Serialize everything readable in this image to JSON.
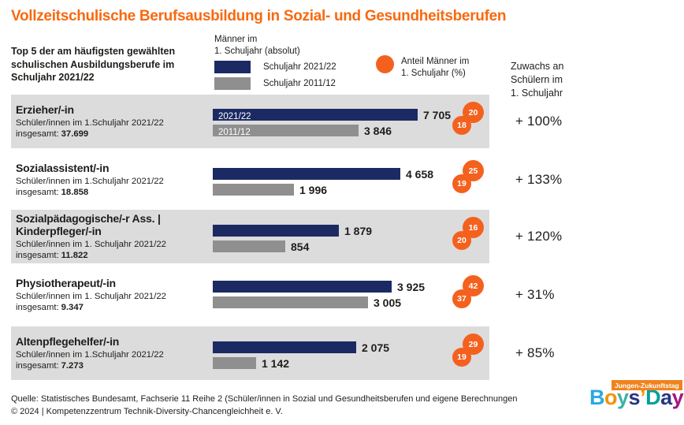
{
  "title": "Vollzeitschulische Berufsausbildung in Sozial- und Gesundheitsberufen",
  "colors": {
    "accent_orange": "#f8690e",
    "circle_orange": "#f4611e",
    "bar_navy": "#1b2a63",
    "bar_gray": "#8f8f8f",
    "row_band_gray": "#dcdcdc"
  },
  "header": {
    "intro": "Top 5 der am häufigsten gewählten schulischen Ausbildungsberufe im Schuljahr 2021/22",
    "legend_abs_line1": "Männer im",
    "legend_abs_line2": "1. Schuljahr (absolut)",
    "legend_blue_label": "Schuljahr 2021/22",
    "legend_gray_label": "Schuljahr 2011/12",
    "legend_pct_line1": "Anteil Männer im",
    "legend_pct_line2": "1. Schuljahr (%)",
    "right_col_line1": "Zuwachs an",
    "right_col_line2": "Schülern im",
    "right_col_line3": "1. Schuljahr"
  },
  "rows": [
    {
      "title": "Erzieher/-in",
      "sub": "Schüler/innen im 1.Schuljahr 2021/22",
      "total_label": "insgesamt:",
      "total": "37.699",
      "bar1": {
        "inline": "2021/22",
        "label": "7 705",
        "px": 260
      },
      "bar2": {
        "inline": "2011/12",
        "label": "3 846",
        "px": 185
      },
      "pct_top": "20",
      "pct_bottom": "18",
      "growth": "+ 100%"
    },
    {
      "title": "Sozialassistent/-in",
      "sub": "Schüler/innen im 1.Schuljahr 2021/22",
      "total_label": "insgesamt:",
      "total": "18.858",
      "bar1": {
        "inline": "",
        "label": "4 658",
        "px": 238
      },
      "bar2": {
        "inline": "",
        "label": "1 996",
        "px": 103
      },
      "pct_top": "25",
      "pct_bottom": "19",
      "growth": "+ 133%"
    },
    {
      "title": "Sozialpädagogische/-r Ass. | Kinderpfleger/-in",
      "sub": "Schüler/innen im 1. Schuljahr 2021/22",
      "total_label": "insgesamt:",
      "total": "11.822",
      "bar1": {
        "inline": "",
        "label": "1 879",
        "px": 160
      },
      "bar2": {
        "inline": "",
        "label": "854",
        "px": 92
      },
      "pct_top": "16",
      "pct_bottom": "20",
      "growth": "+ 120%"
    },
    {
      "title": "Physiotherapeut/-in",
      "sub": "Schüler/innen im 1. Schuljahr 2021/22",
      "total_label": "insgesamt:",
      "total": "9.347",
      "bar1": {
        "inline": "",
        "label": "3 925",
        "px": 227
      },
      "bar2": {
        "inline": "",
        "label": "3 005",
        "px": 197
      },
      "pct_top": "42",
      "pct_bottom": "37",
      "growth": "+ 31%"
    },
    {
      "title": "Altenpflegehelfer/-in",
      "sub": "Schüler/innen im 1.Schuljahr 2021/22",
      "total_label": "insgesamt:",
      "total": "7.273",
      "bar1": {
        "inline": "",
        "label": "2 075",
        "px": 182
      },
      "bar2": {
        "inline": "",
        "label": "1 142",
        "px": 55
      },
      "pct_top": "29",
      "pct_bottom": "19",
      "growth": "+ 85%"
    }
  ],
  "footer": {
    "line1": "Quelle: Statistisches Bundesamt, Fachserie 11 Reihe 2 (Schüler/innen in Sozial und Gesundheitsberufen und eigene Berechnungen",
    "line2": "© 2024 | Kompetenzzentrum Technik-Diversity-Chancengleichheit e. V."
  },
  "logo": {
    "badge": "Jungen-Zukunftstag",
    "letters": [
      {
        "ch": "B",
        "color": "#2ba8e0"
      },
      {
        "ch": "o",
        "color": "#f39200"
      },
      {
        "ch": "y",
        "color": "#3cb3a6"
      },
      {
        "ch": "s",
        "color": "#283583"
      },
      {
        "ch": "’",
        "color": "#f39200"
      },
      {
        "ch": "D",
        "color": "#00a19a"
      },
      {
        "ch": "a",
        "color": "#283583"
      },
      {
        "ch": "y",
        "color": "#a3197f"
      }
    ]
  },
  "chart_data": {
    "type": "bar",
    "orientation": "horizontal",
    "title": "Vollzeitschulische Berufsausbildung in Sozial- und Gesundheitsberufen",
    "subtitle": "Top 5 der am häufigsten gewählten schulischen Ausbildungsberufe im Schuljahr 2021/22",
    "categories": [
      "Erzieher/-in",
      "Sozialassistent/-in",
      "Sozialpädagogische/-r Ass. | Kinderpfleger/-in",
      "Physiotherapeut/-in",
      "Altenpflegehelfer/-in"
    ],
    "series": [
      {
        "name": "Schuljahr 2021/22",
        "values": [
          7705,
          4658,
          1879,
          3925,
          2075
        ],
        "color": "#1b2a63"
      },
      {
        "name": "Schuljahr 2011/12",
        "values": [
          3846,
          1996,
          854,
          3005,
          1142
        ],
        "color": "#8f8f8f"
      }
    ],
    "male_share_pct": [
      {
        "name": "Anteil Männer im 1. Schuljahr (%) 2021/22",
        "values": [
          20,
          25,
          16,
          42,
          29
        ]
      },
      {
        "name": "Anteil Männer im 1. Schuljahr (%) 2011/12",
        "values": [
          18,
          19,
          20,
          37,
          19
        ]
      }
    ],
    "totals_first_year_2021_22": [
      37699,
      18858,
      11822,
      9347,
      7273
    ],
    "growth_first_year_pct": [
      100,
      133,
      120,
      31,
      85
    ],
    "legend_position": "top",
    "grid": false
  }
}
